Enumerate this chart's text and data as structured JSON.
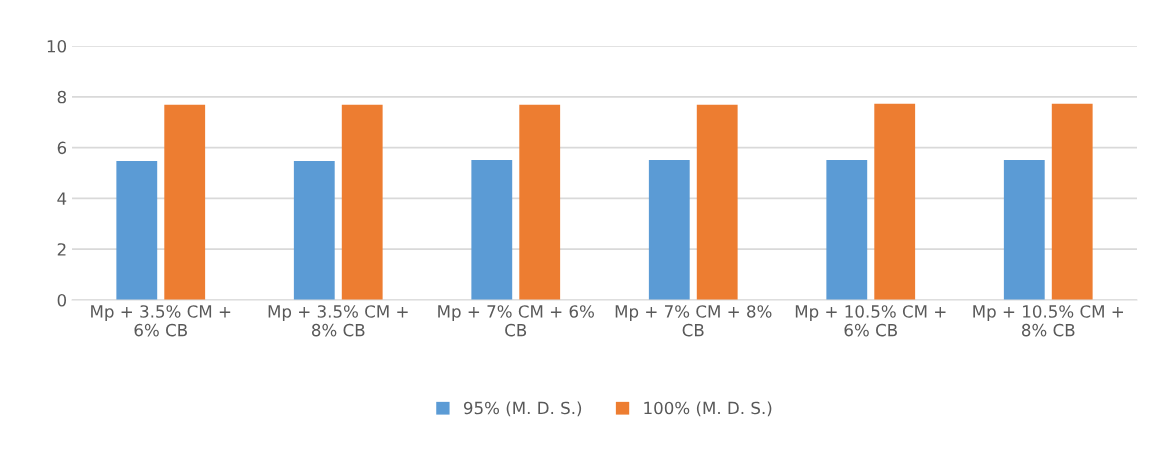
{
  "chart_data": {
    "type": "bar",
    "categories": [
      "Mp + 3.5% CM +\n6% CB",
      "Mp + 3.5% CM +\n8% CB",
      "Mp + 7% CM + 6%\nCB",
      "Mp + 7% CM + 8%\nCB",
      "Mp + 10.5% CM +\n6% CB",
      "Mp + 10.5% CM +\n8% CB"
    ],
    "series": [
      {
        "name": "95% (M. D. S.)",
        "color": "#5b9bd5",
        "values": [
          5.47,
          5.47,
          5.51,
          5.51,
          5.51,
          5.51
        ]
      },
      {
        "name": "100% (M. D. S.)",
        "color": "#ed7d31",
        "values": [
          7.69,
          7.69,
          7.69,
          7.69,
          7.73,
          7.73
        ]
      }
    ],
    "ylim": [
      0,
      10
    ],
    "yticks": [
      0,
      2,
      4,
      6,
      8,
      10
    ],
    "grid": "y",
    "legend": "bottom"
  }
}
